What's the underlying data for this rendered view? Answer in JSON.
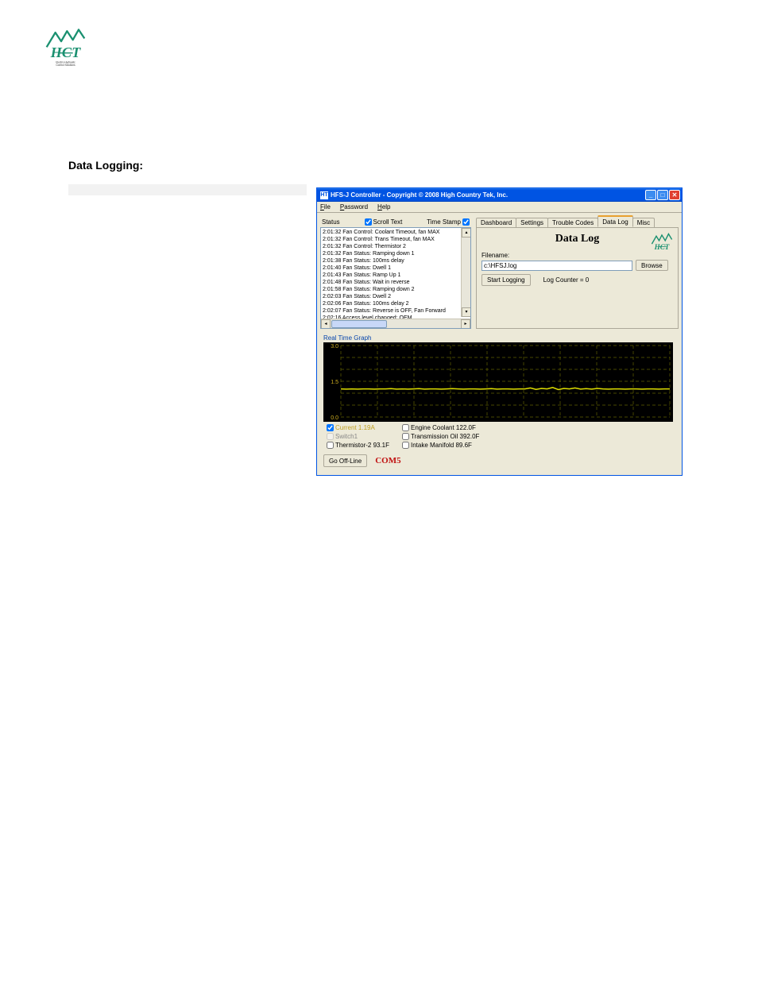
{
  "page": {
    "heading": "Data Logging:"
  },
  "logo": {
    "brand_text": "HCT",
    "tagline": "Electro-Hydraulic Control Solutions",
    "mountain_color": "#1a9070",
    "tagline_color": "#333333"
  },
  "window": {
    "title": "HFS-J Controller - Copyright © 2008 High Country Tek, Inc.",
    "titlebar_icon": "HT",
    "colors": {
      "titlebar_gradient_top": "#3c8cf0",
      "titlebar_gradient_mid": "#0054e3",
      "chrome_bg": "#ece9d8",
      "border": "#aca899",
      "input_border": "#7f9db9",
      "close_btn": "#e04030"
    }
  },
  "menu": {
    "file": "File",
    "password": "Password",
    "help": "Help"
  },
  "status": {
    "label": "Status",
    "scroll_text_label": "Scroll Text",
    "scroll_text_checked": true,
    "time_stamp_label": "Time Stamp",
    "time_stamp_checked": true,
    "entries": [
      {
        "t": "2:01:32",
        "msg": "Fan Control: Coolant Timeout, fan MAX"
      },
      {
        "t": "2:01:32",
        "msg": "Fan Control: Trans Timeout, fan MAX"
      },
      {
        "t": "2:01:32",
        "msg": "Fan Control: Thermistor 2"
      },
      {
        "t": "2:01:32",
        "msg": "Fan Status: Ramping down 1"
      },
      {
        "t": "2:01:38",
        "msg": "Fan Status: 100ms delay"
      },
      {
        "t": "2:01:40",
        "msg": "Fan Status: Dwell 1"
      },
      {
        "t": "2:01:43",
        "msg": "Fan Status: Ramp Up 1"
      },
      {
        "t": "2:01:48",
        "msg": "Fan Status: Wait in reverse"
      },
      {
        "t": "2:01:58",
        "msg": "Fan Status: Ramping down 2"
      },
      {
        "t": "2:02:03",
        "msg": "Fan Status: Dwell 2"
      },
      {
        "t": "2:02:06",
        "msg": "Fan Status: 100ms delay 2"
      },
      {
        "t": "2:02:07",
        "msg": "Fan Status: Reverse is OFF, Fan Forward"
      },
      {
        "t": "2:02:16",
        "msg": "Access level changed: OEM"
      }
    ]
  },
  "tabs": {
    "items": [
      "Dashboard",
      "Settings",
      "Trouble Codes",
      "Data Log",
      "Misc"
    ],
    "active_index": 3
  },
  "datalog": {
    "title": "Data Log",
    "filename_label": "Filename:",
    "filename_value": "c:\\HFSJ.log",
    "browse_label": "Browse",
    "start_label": "Start Logging",
    "counter_label": "Log Counter = 0"
  },
  "graph": {
    "label": "Real Time Graph",
    "ylim": [
      0.0,
      3.0
    ],
    "yticks": [
      0.0,
      1.5,
      3.0
    ],
    "grid_color": "#606000",
    "grid_dash": "4,3",
    "axis_label_color": "#d0b020",
    "background": "#000000",
    "v_grid_count": 9,
    "series": {
      "name": "Current",
      "color": "#e0e000",
      "width": 1.5,
      "points_y": [
        1.18,
        1.17,
        1.18,
        1.17,
        1.18,
        1.18,
        1.17,
        1.18,
        1.18,
        1.19,
        1.17,
        1.18,
        1.17,
        1.18,
        1.19,
        1.17,
        1.18,
        1.18,
        1.17,
        1.18,
        1.19,
        1.18,
        1.17,
        1.18,
        1.18,
        1.17,
        1.18,
        1.19,
        1.17,
        1.18,
        1.18,
        1.17,
        1.18,
        1.18,
        1.22,
        1.16,
        1.2,
        1.18,
        1.24,
        1.15,
        1.2,
        1.18,
        1.22,
        1.17,
        1.19,
        1.17,
        1.2,
        1.18,
        1.17,
        1.18,
        1.18,
        1.17,
        1.18,
        1.18,
        1.17,
        1.18,
        1.18,
        1.17,
        1.18,
        1.18
      ]
    }
  },
  "legend": {
    "items": [
      {
        "label": "Current 1.19A",
        "checked": true,
        "color": "#c0a020",
        "enabled": true
      },
      {
        "label": "Engine Coolant 122.0F",
        "checked": false,
        "enabled": true
      },
      {
        "label": "Switch1",
        "checked": false,
        "enabled": false
      },
      {
        "label": "Transmission Oil 392.0F",
        "checked": false,
        "enabled": true
      },
      {
        "label": "Thermistor-2 93.1F",
        "checked": false,
        "enabled": true
      },
      {
        "label": "Intake Manifold 89.6F",
        "checked": false,
        "enabled": true
      }
    ]
  },
  "footer": {
    "go_offline": "Go Off-Line",
    "com_port": "COM5"
  }
}
